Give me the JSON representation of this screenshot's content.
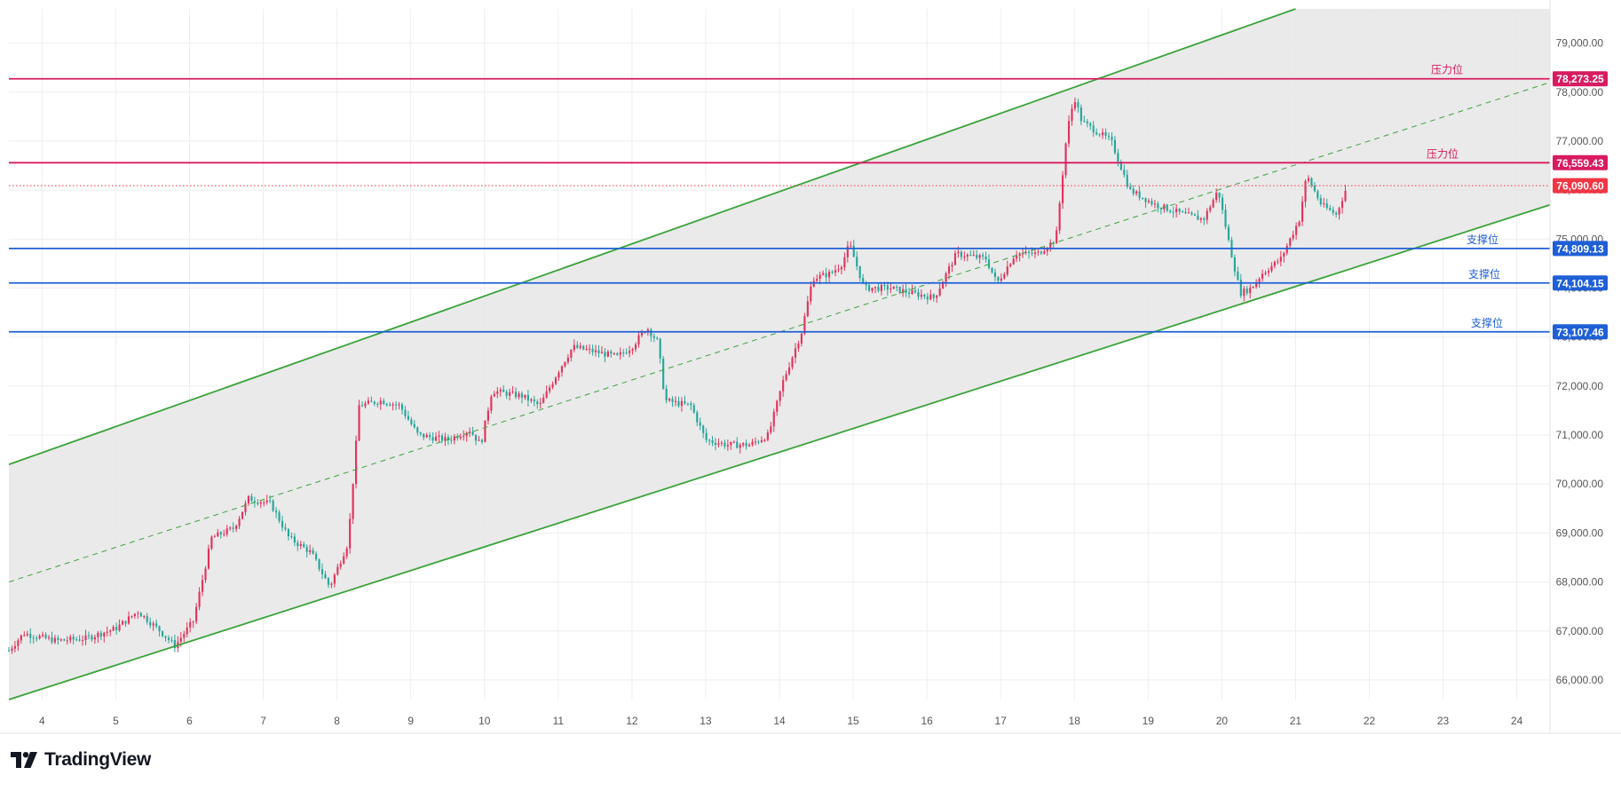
{
  "brand": {
    "name": "TradingView"
  },
  "colors": {
    "up": "#e0345c",
    "down": "#26a69a",
    "channel": "#3aa33a",
    "resistance": "#d81b60",
    "support": "#1f5fd6",
    "current": "#f23645",
    "grid": "#eeeeee",
    "channel_fill": "#e6e6e6"
  },
  "chart_data": {
    "type": "candlestick",
    "x_axis": {
      "tick_labels": [
        "4",
        "5",
        "6",
        "7",
        "8",
        "9",
        "10",
        "11",
        "12",
        "13",
        "14",
        "15",
        "16",
        "17",
        "18",
        "19",
        "20",
        "21",
        "22",
        "23",
        "24"
      ],
      "range": [
        3.55,
        24.45
      ]
    },
    "y_axis": {
      "tick_labels": [
        "66,000.00",
        "67,000.00",
        "68,000.00",
        "69,000.00",
        "70,000.00",
        "71,000.00",
        "72,000.00",
        "73,000.00",
        "74,000.00",
        "75,000.00",
        "76,000.00",
        "77,000.00",
        "78,000.00",
        "79,000.00"
      ],
      "tick_values": [
        66000,
        67000,
        68000,
        69000,
        70000,
        71000,
        72000,
        73000,
        74000,
        75000,
        76000,
        77000,
        78000,
        79000
      ],
      "range": [
        65600,
        79700
      ]
    },
    "grid": true,
    "price_path": [
      [
        3.55,
        66600
      ],
      [
        3.75,
        66950
      ],
      [
        4.2,
        66800
      ],
      [
        4.6,
        66850
      ],
      [
        5.0,
        67050
      ],
      [
        5.3,
        67400
      ],
      [
        5.6,
        67000
      ],
      [
        5.8,
        66700
      ],
      [
        6.05,
        67200
      ],
      [
        6.3,
        68900
      ],
      [
        6.6,
        69100
      ],
      [
        6.8,
        69700
      ],
      [
        7.1,
        69600
      ],
      [
        7.35,
        68900
      ],
      [
        7.65,
        68600
      ],
      [
        7.9,
        67900
      ],
      [
        8.15,
        68800
      ],
      [
        8.3,
        71600
      ],
      [
        8.6,
        71700
      ],
      [
        8.85,
        71600
      ],
      [
        9.1,
        71000
      ],
      [
        9.5,
        70900
      ],
      [
        9.8,
        71100
      ],
      [
        9.95,
        70800
      ],
      [
        10.1,
        71900
      ],
      [
        10.5,
        71800
      ],
      [
        10.75,
        71600
      ],
      [
        11.0,
        72300
      ],
      [
        11.2,
        72800
      ],
      [
        11.5,
        72700
      ],
      [
        11.8,
        72600
      ],
      [
        12.0,
        72800
      ],
      [
        12.2,
        73200
      ],
      [
        12.35,
        72900
      ],
      [
        12.45,
        71700
      ],
      [
        12.8,
        71600
      ],
      [
        13.0,
        70900
      ],
      [
        13.3,
        70800
      ],
      [
        13.6,
        70800
      ],
      [
        13.85,
        71000
      ],
      [
        14.05,
        72100
      ],
      [
        14.3,
        73100
      ],
      [
        14.45,
        74200
      ],
      [
        14.7,
        74300
      ],
      [
        14.85,
        74500
      ],
      [
        14.95,
        74900
      ],
      [
        15.15,
        74000
      ],
      [
        15.5,
        74000
      ],
      [
        15.8,
        73900
      ],
      [
        16.1,
        73800
      ],
      [
        16.4,
        74700
      ],
      [
        16.8,
        74600
      ],
      [
        16.95,
        74100
      ],
      [
        17.2,
        74700
      ],
      [
        17.5,
        74700
      ],
      [
        17.75,
        75000
      ],
      [
        17.9,
        77200
      ],
      [
        18.0,
        77900
      ],
      [
        18.1,
        77400
      ],
      [
        18.5,
        77000
      ],
      [
        18.75,
        76000
      ],
      [
        19.1,
        75700
      ],
      [
        19.5,
        75500
      ],
      [
        19.75,
        75400
      ],
      [
        19.95,
        76000
      ],
      [
        20.1,
        74900
      ],
      [
        20.25,
        73900
      ],
      [
        20.4,
        74000
      ],
      [
        20.55,
        74300
      ],
      [
        20.8,
        74600
      ],
      [
        21.05,
        75400
      ],
      [
        21.15,
        76300
      ],
      [
        21.35,
        75700
      ],
      [
        21.55,
        75500
      ],
      [
        21.7,
        76090
      ]
    ],
    "channel": {
      "upper": [
        [
          3.55,
          70400
        ],
        [
          21.0,
          79700
        ]
      ],
      "lower": [
        [
          3.55,
          65600
        ],
        [
          24.45,
          75700
        ]
      ],
      "midline": [
        [
          3.55,
          68000
        ],
        [
          24.45,
          78200
        ]
      ]
    },
    "horizontal_levels": [
      {
        "label": "压力位",
        "price_label": "78,273.25",
        "value": 78273.25,
        "kind": "resistance"
      },
      {
        "label": "压力位",
        "price_label": "76,559.43",
        "value": 76559.43,
        "kind": "resistance"
      },
      {
        "label": "支撑位",
        "price_label": "74,809.13",
        "value": 74809.13,
        "kind": "support"
      },
      {
        "label": "支撑位",
        "price_label": "74,104.15",
        "value": 74104.15,
        "kind": "support"
      },
      {
        "label": "支撑位",
        "price_label": "73,107.46",
        "value": 73107.46,
        "kind": "support"
      }
    ],
    "current_price": {
      "value": 76090.6,
      "price_label": "76,090.60"
    }
  }
}
